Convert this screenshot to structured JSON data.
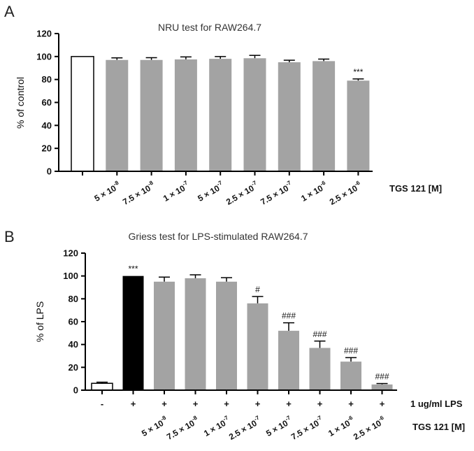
{
  "chart_data": [
    {
      "panel": "A",
      "type": "bar",
      "title": "NRU test for RAW264.7",
      "ylabel": "% of control",
      "xlabel": "TGS 121 [M]",
      "ylim": [
        0,
        120
      ],
      "yticks": [
        0,
        20,
        40,
        60,
        80,
        100,
        120
      ],
      "categories": [
        {
          "base": "",
          "exp": ""
        },
        {
          "base": "5 × 10",
          "exp": "-8"
        },
        {
          "base": "7.5 × 10",
          "exp": "-8"
        },
        {
          "base": "1 × 10",
          "exp": "-7"
        },
        {
          "base": "5 × 10",
          "exp": "-7"
        },
        {
          "base": "2.5 × 10",
          "exp": "-7"
        },
        {
          "base": "7.5 × 10",
          "exp": "-7"
        },
        {
          "base": "1 × 10",
          "exp": "-6"
        },
        {
          "base": "2.5 × 10",
          "exp": "-6"
        }
      ],
      "values": [
        100,
        97,
        97,
        97.5,
        98,
        98.5,
        95,
        96,
        79
      ],
      "errors": [
        0,
        1.8,
        2,
        2.2,
        2,
        2.5,
        1.8,
        1.8,
        1.5
      ],
      "fills": [
        "#ffffff",
        "#a3a3a3",
        "#a3a3a3",
        "#a3a3a3",
        "#a3a3a3",
        "#a3a3a3",
        "#a3a3a3",
        "#a3a3a3",
        "#a3a3a3"
      ],
      "annotations": [
        "",
        "",
        "",
        "",
        "",
        "",
        "",
        "",
        "***"
      ]
    },
    {
      "panel": "B",
      "type": "bar",
      "title": "Griess test for LPS-stimulated RAW264.7",
      "ylabel": "% of LPS",
      "row1_label": "1 ug/ml LPS",
      "row2_label": "TGS 121 [M]",
      "ylim": [
        0,
        120
      ],
      "yticks": [
        0,
        20,
        40,
        60,
        80,
        100,
        120
      ],
      "lps": [
        "-",
        "+",
        "+",
        "+",
        "+",
        "+",
        "+",
        "+",
        "+",
        "+"
      ],
      "categories": [
        {
          "base": "",
          "exp": ""
        },
        {
          "base": "",
          "exp": ""
        },
        {
          "base": "5 × 10",
          "exp": "-8"
        },
        {
          "base": "7.5 × 10",
          "exp": "-8"
        },
        {
          "base": "1 × 10",
          "exp": "-7"
        },
        {
          "base": "2.5 × 10",
          "exp": "-7"
        },
        {
          "base": "5 × 10",
          "exp": "-7"
        },
        {
          "base": "7.5 × 10",
          "exp": "-7"
        },
        {
          "base": "1 × 10",
          "exp": "-6"
        },
        {
          "base": "2.5 × 10",
          "exp": "-6"
        }
      ],
      "values": [
        6,
        100,
        95,
        98,
        95,
        76,
        52,
        37,
        25,
        5
      ],
      "errors": [
        1,
        0,
        4,
        3,
        3.5,
        6,
        7,
        6,
        3.5,
        0.8
      ],
      "fills": [
        "#ffffff",
        "#000000",
        "#a3a3a3",
        "#a3a3a3",
        "#a3a3a3",
        "#a3a3a3",
        "#a3a3a3",
        "#a3a3a3",
        "#a3a3a3",
        "#a3a3a3"
      ],
      "annotations": [
        "",
        "***",
        "",
        "",
        "",
        "#",
        "###",
        "###",
        "###",
        "###"
      ]
    }
  ]
}
